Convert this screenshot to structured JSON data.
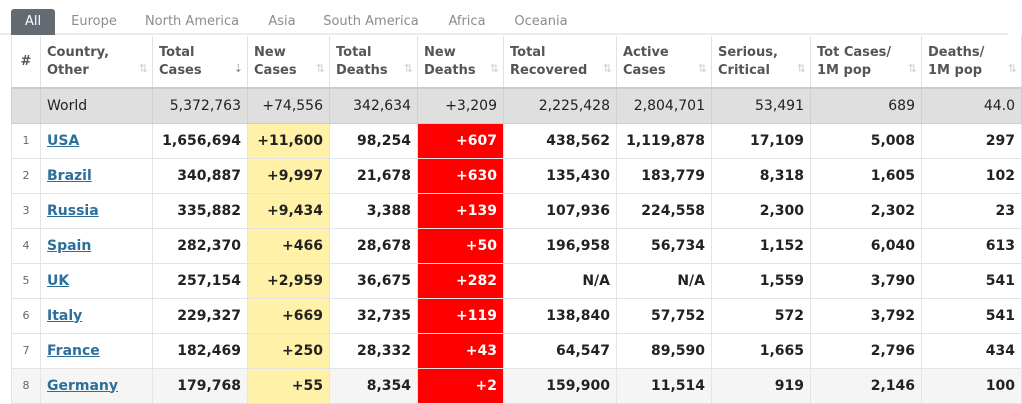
{
  "tabs": [
    "All",
    "Europe",
    "North America",
    "Asia",
    "South America",
    "Africa",
    "Oceania"
  ],
  "headers": {
    "idx": "#",
    "country": [
      "Country,",
      "Other"
    ],
    "total_cases": [
      "Total",
      "Cases"
    ],
    "new_cases": [
      "New",
      "Cases"
    ],
    "total_deaths": [
      "Total",
      "Deaths"
    ],
    "new_deaths": [
      "New",
      "Deaths"
    ],
    "total_recovered": [
      "Total",
      "Recovered"
    ],
    "active_cases": [
      "Active",
      "Cases"
    ],
    "serious": [
      "Serious,",
      "Critical"
    ],
    "cases_per_m": [
      "Tot Cases/",
      "1M pop"
    ],
    "deaths_per_m": [
      "Deaths/",
      "1M pop"
    ]
  },
  "sort_icon": "⇅",
  "sort_icon_active": "⇣",
  "world": {
    "name": "World",
    "total_cases": "5,372,763",
    "new_cases": "+74,556",
    "total_deaths": "342,634",
    "new_deaths": "+3,209",
    "total_recovered": "2,225,428",
    "active_cases": "2,804,701",
    "serious": "53,491",
    "cases_per_m": "689",
    "deaths_per_m": "44.0"
  },
  "rows": [
    {
      "idx": "1",
      "name": "USA",
      "total_cases": "1,656,694",
      "new_cases": "+11,600",
      "total_deaths": "98,254",
      "new_deaths": "+607",
      "total_recovered": "438,562",
      "active_cases": "1,119,878",
      "serious": "17,109",
      "cases_per_m": "5,008",
      "deaths_per_m": "297"
    },
    {
      "idx": "2",
      "name": "Brazil",
      "total_cases": "340,887",
      "new_cases": "+9,997",
      "total_deaths": "21,678",
      "new_deaths": "+630",
      "total_recovered": "135,430",
      "active_cases": "183,779",
      "serious": "8,318",
      "cases_per_m": "1,605",
      "deaths_per_m": "102"
    },
    {
      "idx": "3",
      "name": "Russia",
      "total_cases": "335,882",
      "new_cases": "+9,434",
      "total_deaths": "3,388",
      "new_deaths": "+139",
      "total_recovered": "107,936",
      "active_cases": "224,558",
      "serious": "2,300",
      "cases_per_m": "2,302",
      "deaths_per_m": "23"
    },
    {
      "idx": "4",
      "name": "Spain",
      "total_cases": "282,370",
      "new_cases": "+466",
      "total_deaths": "28,678",
      "new_deaths": "+50",
      "total_recovered": "196,958",
      "active_cases": "56,734",
      "serious": "1,152",
      "cases_per_m": "6,040",
      "deaths_per_m": "613"
    },
    {
      "idx": "5",
      "name": "UK",
      "total_cases": "257,154",
      "new_cases": "+2,959",
      "total_deaths": "36,675",
      "new_deaths": "+282",
      "total_recovered": "N/A",
      "active_cases": "N/A",
      "serious": "1,559",
      "cases_per_m": "3,790",
      "deaths_per_m": "541"
    },
    {
      "idx": "6",
      "name": "Italy",
      "total_cases": "229,327",
      "new_cases": "+669",
      "total_deaths": "32,735",
      "new_deaths": "+119",
      "total_recovered": "138,840",
      "active_cases": "57,752",
      "serious": "572",
      "cases_per_m": "3,792",
      "deaths_per_m": "541"
    },
    {
      "idx": "7",
      "name": "France",
      "total_cases": "182,469",
      "new_cases": "+250",
      "total_deaths": "28,332",
      "new_deaths": "+43",
      "total_recovered": "64,547",
      "active_cases": "89,590",
      "serious": "1,665",
      "cases_per_m": "2,796",
      "deaths_per_m": "434"
    },
    {
      "idx": "8",
      "name": "Germany",
      "total_cases": "179,768",
      "new_cases": "+55",
      "total_deaths": "8,354",
      "new_deaths": "+2",
      "total_recovered": "159,900",
      "active_cases": "11,514",
      "serious": "919",
      "cases_per_m": "2,146",
      "deaths_per_m": "100"
    }
  ]
}
